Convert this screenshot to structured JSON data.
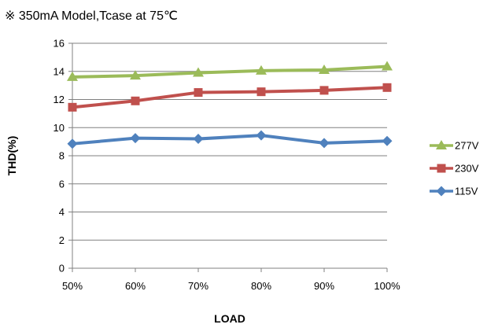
{
  "note": "※ 350mA Model,Tcase at 75℃",
  "chart_data": {
    "type": "line",
    "title": "",
    "xlabel": "LOAD",
    "ylabel": "THD(%)",
    "categories": [
      "50%",
      "60%",
      "70%",
      "80%",
      "90%",
      "100%"
    ],
    "ylim": [
      0,
      16
    ],
    "yticks": [
      0,
      2,
      4,
      6,
      8,
      10,
      12,
      14,
      16
    ],
    "grid": true,
    "legend_position": "right",
    "series": [
      {
        "name": "277V",
        "values": [
          13.6,
          13.7,
          13.9,
          14.05,
          14.1,
          14.35
        ],
        "color": "#9BBB59",
        "marker": "triangle"
      },
      {
        "name": "230V",
        "values": [
          11.45,
          11.9,
          12.5,
          12.55,
          12.65,
          12.85
        ],
        "color": "#C0504D",
        "marker": "square"
      },
      {
        "name": "115V",
        "values": [
          8.85,
          9.25,
          9.2,
          9.45,
          8.9,
          9.05
        ],
        "color": "#4F81BD",
        "marker": "diamond"
      }
    ]
  }
}
